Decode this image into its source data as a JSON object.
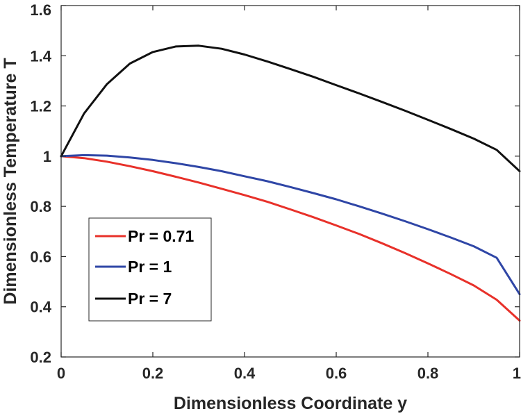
{
  "chart_data": {
    "type": "line",
    "title": "",
    "xlabel": "Dimensionless Coordinate y",
    "ylabel": "Dimensionless Temperature T",
    "xlim": [
      0,
      1
    ],
    "ylim": [
      0.2,
      1.6
    ],
    "xticks": [
      0,
      0.2,
      0.4,
      0.6,
      0.8,
      1
    ],
    "xtick_labels": [
      "0",
      "0.2",
      "0.4",
      "0.6",
      "0.8",
      "1"
    ],
    "yticks": [
      0.2,
      0.4,
      0.6,
      0.8,
      1.0,
      1.2,
      1.4,
      1.6
    ],
    "ytick_labels": [
      "0.2",
      "0.4",
      "0.6",
      "0.8",
      "1",
      "1.2",
      "1.4",
      "1.6"
    ],
    "grid": false,
    "legend_position": "lower-left",
    "x": [
      0,
      0.05,
      0.1,
      0.15,
      0.2,
      0.25,
      0.3,
      0.35,
      0.4,
      0.45,
      0.5,
      0.55,
      0.6,
      0.65,
      0.7,
      0.75,
      0.8,
      0.85,
      0.9,
      0.95,
      1.0
    ],
    "series": [
      {
        "name": "Pr = 0.71",
        "color": "#e8312a",
        "values": [
          1.0,
          0.992,
          0.978,
          0.96,
          0.94,
          0.918,
          0.895,
          0.87,
          0.845,
          0.818,
          0.788,
          0.757,
          0.724,
          0.69,
          0.653,
          0.614,
          0.573,
          0.53,
          0.485,
          0.428,
          0.345
        ]
      },
      {
        "name": "Pr = 1",
        "color": "#2f46a6",
        "values": [
          1.0,
          1.004,
          1.002,
          0.995,
          0.985,
          0.972,
          0.957,
          0.94,
          0.92,
          0.9,
          0.877,
          0.853,
          0.828,
          0.8,
          0.771,
          0.741,
          0.709,
          0.676,
          0.641,
          0.595,
          0.45
        ]
      },
      {
        "name": "Pr = 7",
        "color": "#111111",
        "values": [
          1.0,
          1.17,
          1.287,
          1.369,
          1.415,
          1.437,
          1.44,
          1.428,
          1.405,
          1.377,
          1.347,
          1.316,
          1.283,
          1.25,
          1.216,
          1.181,
          1.145,
          1.108,
          1.07,
          1.025,
          0.94
        ]
      }
    ]
  }
}
